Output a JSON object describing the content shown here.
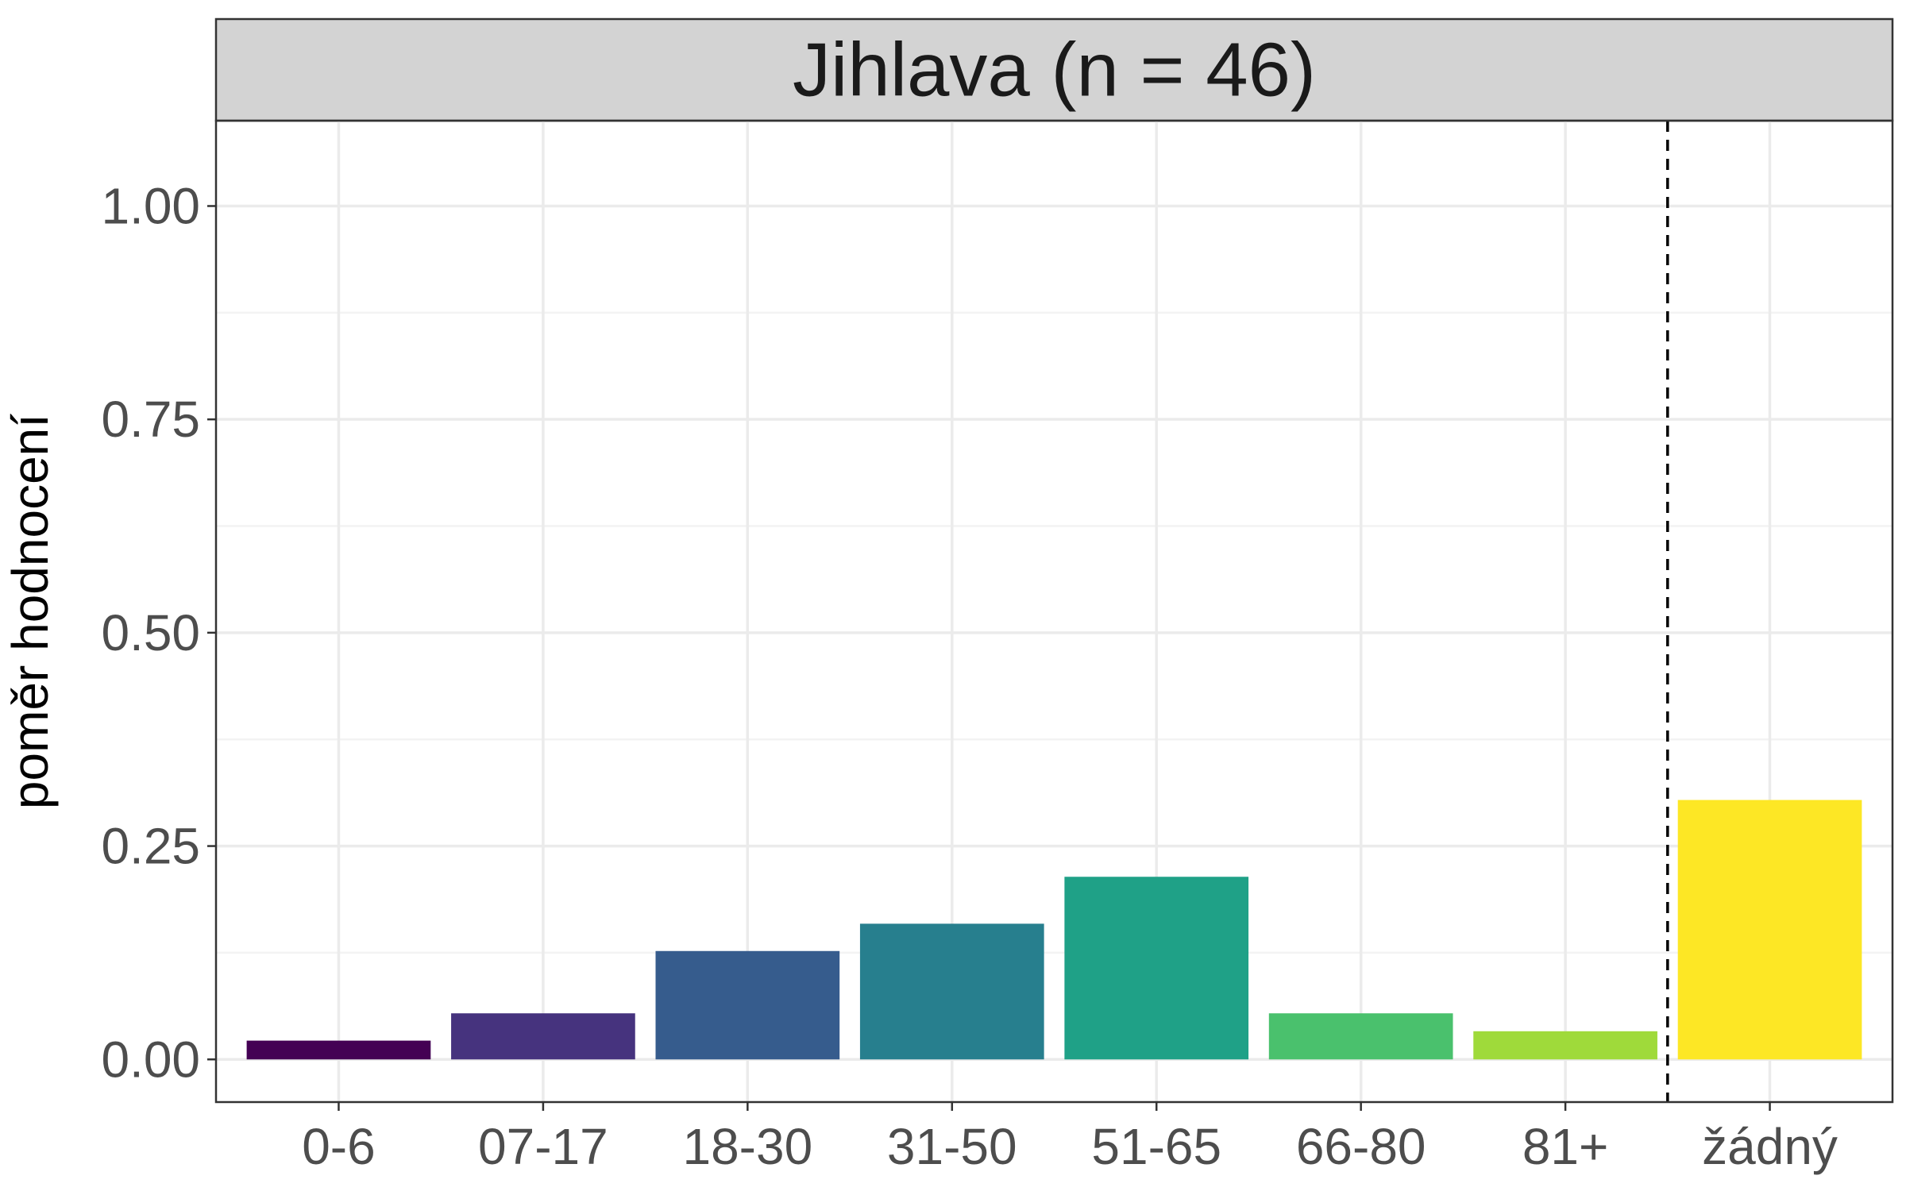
{
  "chart_data": {
    "type": "bar",
    "facet_title": "Jihlava (n = 46)",
    "ylabel": "poměr hodnocení",
    "xlabel": "",
    "categories": [
      "0-6",
      "07-17",
      "18-30",
      "31-50",
      "51-65",
      "66-80",
      "81+",
      "žádný"
    ],
    "values": [
      0.022,
      0.054,
      0.127,
      0.159,
      0.214,
      0.054,
      0.033,
      0.304
    ],
    "colors": [
      "#440154",
      "#46337E",
      "#365C8D",
      "#277F8E",
      "#1FA187",
      "#4AC16D",
      "#9FDA3A",
      "#FDE725"
    ],
    "ylim": [
      -0.05,
      1.1
    ],
    "yticks": [
      0,
      0.25,
      0.5,
      0.75,
      1.0
    ],
    "ytick_labels": [
      "0.00",
      "0.25",
      "0.50",
      "0.75",
      "1.00"
    ],
    "reference_line": {
      "after_category": "81+",
      "style": "dashed",
      "color": "#000000"
    },
    "grid": true,
    "theme": {
      "strip_fill": "#d3d3d3",
      "border": "#333333",
      "grid_major": "#ebebeb",
      "grid_minor": "#f3f3f3",
      "tick_text": "#4d4d4d"
    }
  }
}
